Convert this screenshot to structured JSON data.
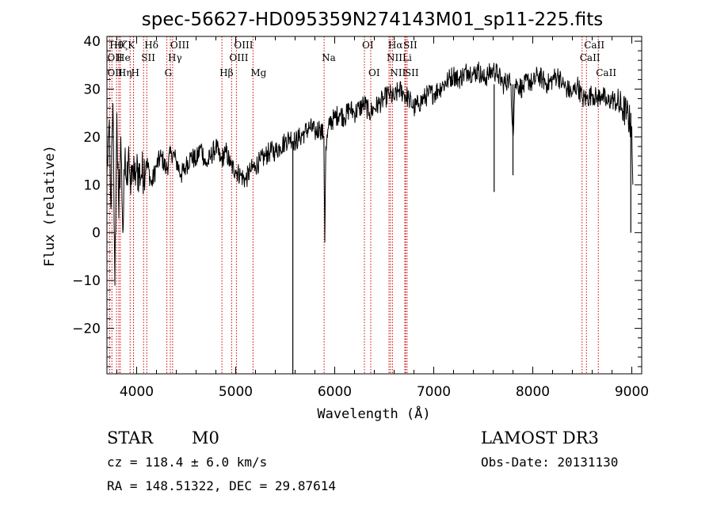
{
  "chart_data": {
    "type": "line",
    "title": "spec-56627-HD095359N274143M01_sp11-225.fits",
    "xlabel": "Wavelength (Å)",
    "ylabel": "Flux (relative)",
    "xlim": [
      3700,
      9100
    ],
    "ylim": [
      -29.5,
      41
    ],
    "xticks": [
      4000,
      5000,
      6000,
      7000,
      8000,
      9000
    ],
    "xtick_labels": [
      "4000",
      "5000",
      "6000",
      "7000",
      "8000",
      "9000"
    ],
    "yticks": [
      40,
      30,
      20,
      10,
      0,
      -10,
      -20
    ],
    "ytick_labels": [
      "40",
      "30",
      "20",
      "10",
      "0",
      "−10",
      "−20"
    ],
    "grid": false,
    "line_color": "#000000",
    "marker_color": "#cc0000",
    "series": [
      {
        "x": [
          3700,
          3720,
          3740,
          3760,
          3780,
          3800,
          3820,
          3840,
          3860,
          3880,
          3900,
          3920,
          3940,
          3960,
          3980,
          4000,
          4050,
          4100,
          4150,
          4200,
          4250,
          4300,
          4350,
          4400,
          4450,
          4500,
          4550,
          4600,
          4650,
          4700,
          4750,
          4800,
          4850,
          4900,
          4950,
          5000,
          5050,
          5100,
          5150,
          5200,
          5250,
          5300,
          5350,
          5400,
          5450,
          5500,
          5550,
          5600,
          5650,
          5700,
          5750,
          5800,
          5850,
          5890,
          5900,
          5910,
          5950,
          6000,
          6050,
          6100,
          6150,
          6200,
          6250,
          6300,
          6350,
          6400,
          6450,
          6500,
          6550,
          6600,
          6650,
          6700,
          6750,
          6800,
          6850,
          6900,
          6950,
          7000,
          7050,
          7100,
          7150,
          7200,
          7250,
          7300,
          7350,
          7400,
          7450,
          7500,
          7550,
          7600,
          7650,
          7700,
          7750,
          7780,
          7800,
          7820,
          7850,
          7900,
          7950,
          8000,
          8050,
          8100,
          8150,
          8200,
          8250,
          8300,
          8350,
          8400,
          8450,
          8500,
          8550,
          8600,
          8650,
          8700,
          8750,
          8800,
          8850,
          8900,
          8950,
          9000,
          9010
        ],
        "y": [
          12,
          22,
          5,
          27,
          -11,
          25,
          3,
          20,
          0,
          15,
          10,
          18,
          8,
          14,
          11,
          13,
          12,
          15,
          10,
          14,
          16,
          13,
          17,
          15,
          12,
          14,
          16,
          15,
          18,
          14,
          16,
          18,
          15,
          17,
          14,
          13,
          12,
          11,
          13,
          14,
          15,
          16,
          17,
          17,
          18,
          19,
          20,
          19,
          20,
          21,
          22,
          21,
          22,
          20,
          -2,
          18,
          23,
          24,
          25,
          24,
          26,
          25,
          26,
          27,
          25,
          26,
          27,
          28,
          29,
          28,
          30,
          29,
          28,
          26,
          27,
          28,
          29,
          29,
          30,
          31,
          32,
          33,
          32,
          33,
          34,
          33,
          34,
          32,
          33,
          34,
          33,
          31,
          32,
          31,
          20,
          31,
          31,
          30,
          32,
          31,
          33,
          32,
          31,
          32,
          33,
          31,
          30,
          29,
          31,
          28,
          28,
          29,
          28,
          29,
          27,
          28,
          27,
          26,
          25,
          22,
          10
        ]
      }
    ],
    "spikes": [
      {
        "x": 5577,
        "y_from": 19,
        "y_to": -29.5
      },
      {
        "x": 7610,
        "y_from": 31,
        "y_to": 8.5
      },
      {
        "x": 7800,
        "y_from": 31,
        "y_to": 12
      },
      {
        "x": 8990,
        "y_from": 25,
        "y_to": 0
      }
    ],
    "annotations": [
      {
        "label": "OII",
        "x": 3727,
        "row": 3
      },
      {
        "label": "OII",
        "x": 3727,
        "row": 2
      },
      {
        "label": "Hθ",
        "x": 3750,
        "row": 1
      },
      {
        "label": "Hη",
        "x": 3835,
        "row": 3
      },
      {
        "label": "He",
        "x": 3820,
        "row": 2
      },
      {
        "label": "Hζ",
        "x": 3797,
        "row": 1
      },
      {
        "label": "K",
        "x": 3934,
        "row": 1
      },
      {
        "label": "H",
        "x": 3968,
        "row": 3
      },
      {
        "label": "SII",
        "x": 4070,
        "row": 2
      },
      {
        "label": "Hδ",
        "x": 4102,
        "row": 1
      },
      {
        "label": "OIII",
        "x": 4363,
        "row": 1
      },
      {
        "label": "Hγ",
        "x": 4340,
        "row": 2
      },
      {
        "label": "G",
        "x": 4305,
        "row": 3
      },
      {
        "label": "Hβ",
        "x": 4861,
        "row": 3
      },
      {
        "label": "OIII",
        "x": 4959,
        "row": 2
      },
      {
        "label": "OIII",
        "x": 5007,
        "row": 1
      },
      {
        "label": "Mg",
        "x": 5175,
        "row": 3
      },
      {
        "label": "Na",
        "x": 5893,
        "row": 2
      },
      {
        "label": "OI",
        "x": 6300,
        "row": 1
      },
      {
        "label": "OI",
        "x": 6364,
        "row": 3
      },
      {
        "label": "NII",
        "x": 6548,
        "row": 2
      },
      {
        "label": "NII",
        "x": 6583,
        "row": 3
      },
      {
        "label": "Hα",
        "x": 6563,
        "row": 1
      },
      {
        "label": "SII",
        "x": 6716,
        "row": 1
      },
      {
        "label": "Li",
        "x": 6708,
        "row": 2
      },
      {
        "label": "SII",
        "x": 6731,
        "row": 3
      },
      {
        "label": "CaII",
        "x": 8498,
        "row": 2
      },
      {
        "label": "CaII",
        "x": 8542,
        "row": 1
      },
      {
        "label": "CaII",
        "x": 8662,
        "row": 3
      }
    ]
  },
  "info": {
    "object_class": "STAR",
    "subclass": "M0",
    "survey": "LAMOST DR3",
    "cz": "cz = 118.4 ± 6.0 km/s",
    "obs_date": "Obs-Date: 20131130",
    "coords": "RA = 148.51322, DEC =  29.87614"
  }
}
